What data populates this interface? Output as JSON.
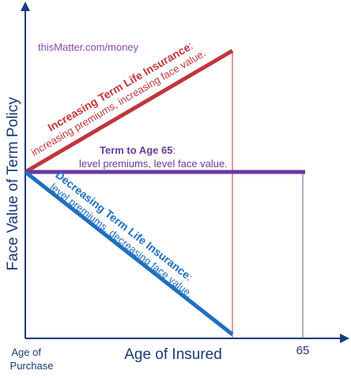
{
  "watermark": "thisMatter.com/money",
  "y_axis_label": "Face Value of Term Policy",
  "x_axis_label": "Age of Insured",
  "x_tick_start": [
    "Age of",
    "Purchase"
  ],
  "x_tick_end": "65",
  "colors": {
    "axis": "#1a3a7a",
    "increasing": "#c0363a",
    "term_to_65": "#6a3a9a",
    "decreasing": "#1f6fc0",
    "watermark": "#8a4aa8",
    "ref_line_65": "#4a6a8a"
  },
  "lines": {
    "increasing": {
      "title": "Increasing Term Life Insurance",
      "title_suffix": ":",
      "description": "increasing premiums, increasing face value."
    },
    "term_to_65": {
      "title": "Term to Age 65",
      "title_suffix": ":",
      "description": "level premiums, level face value."
    },
    "decreasing": {
      "title": "Decreasing Term Life Insurance",
      "title_suffix": ":",
      "description": "level premiums, decreasing face value."
    }
  }
}
